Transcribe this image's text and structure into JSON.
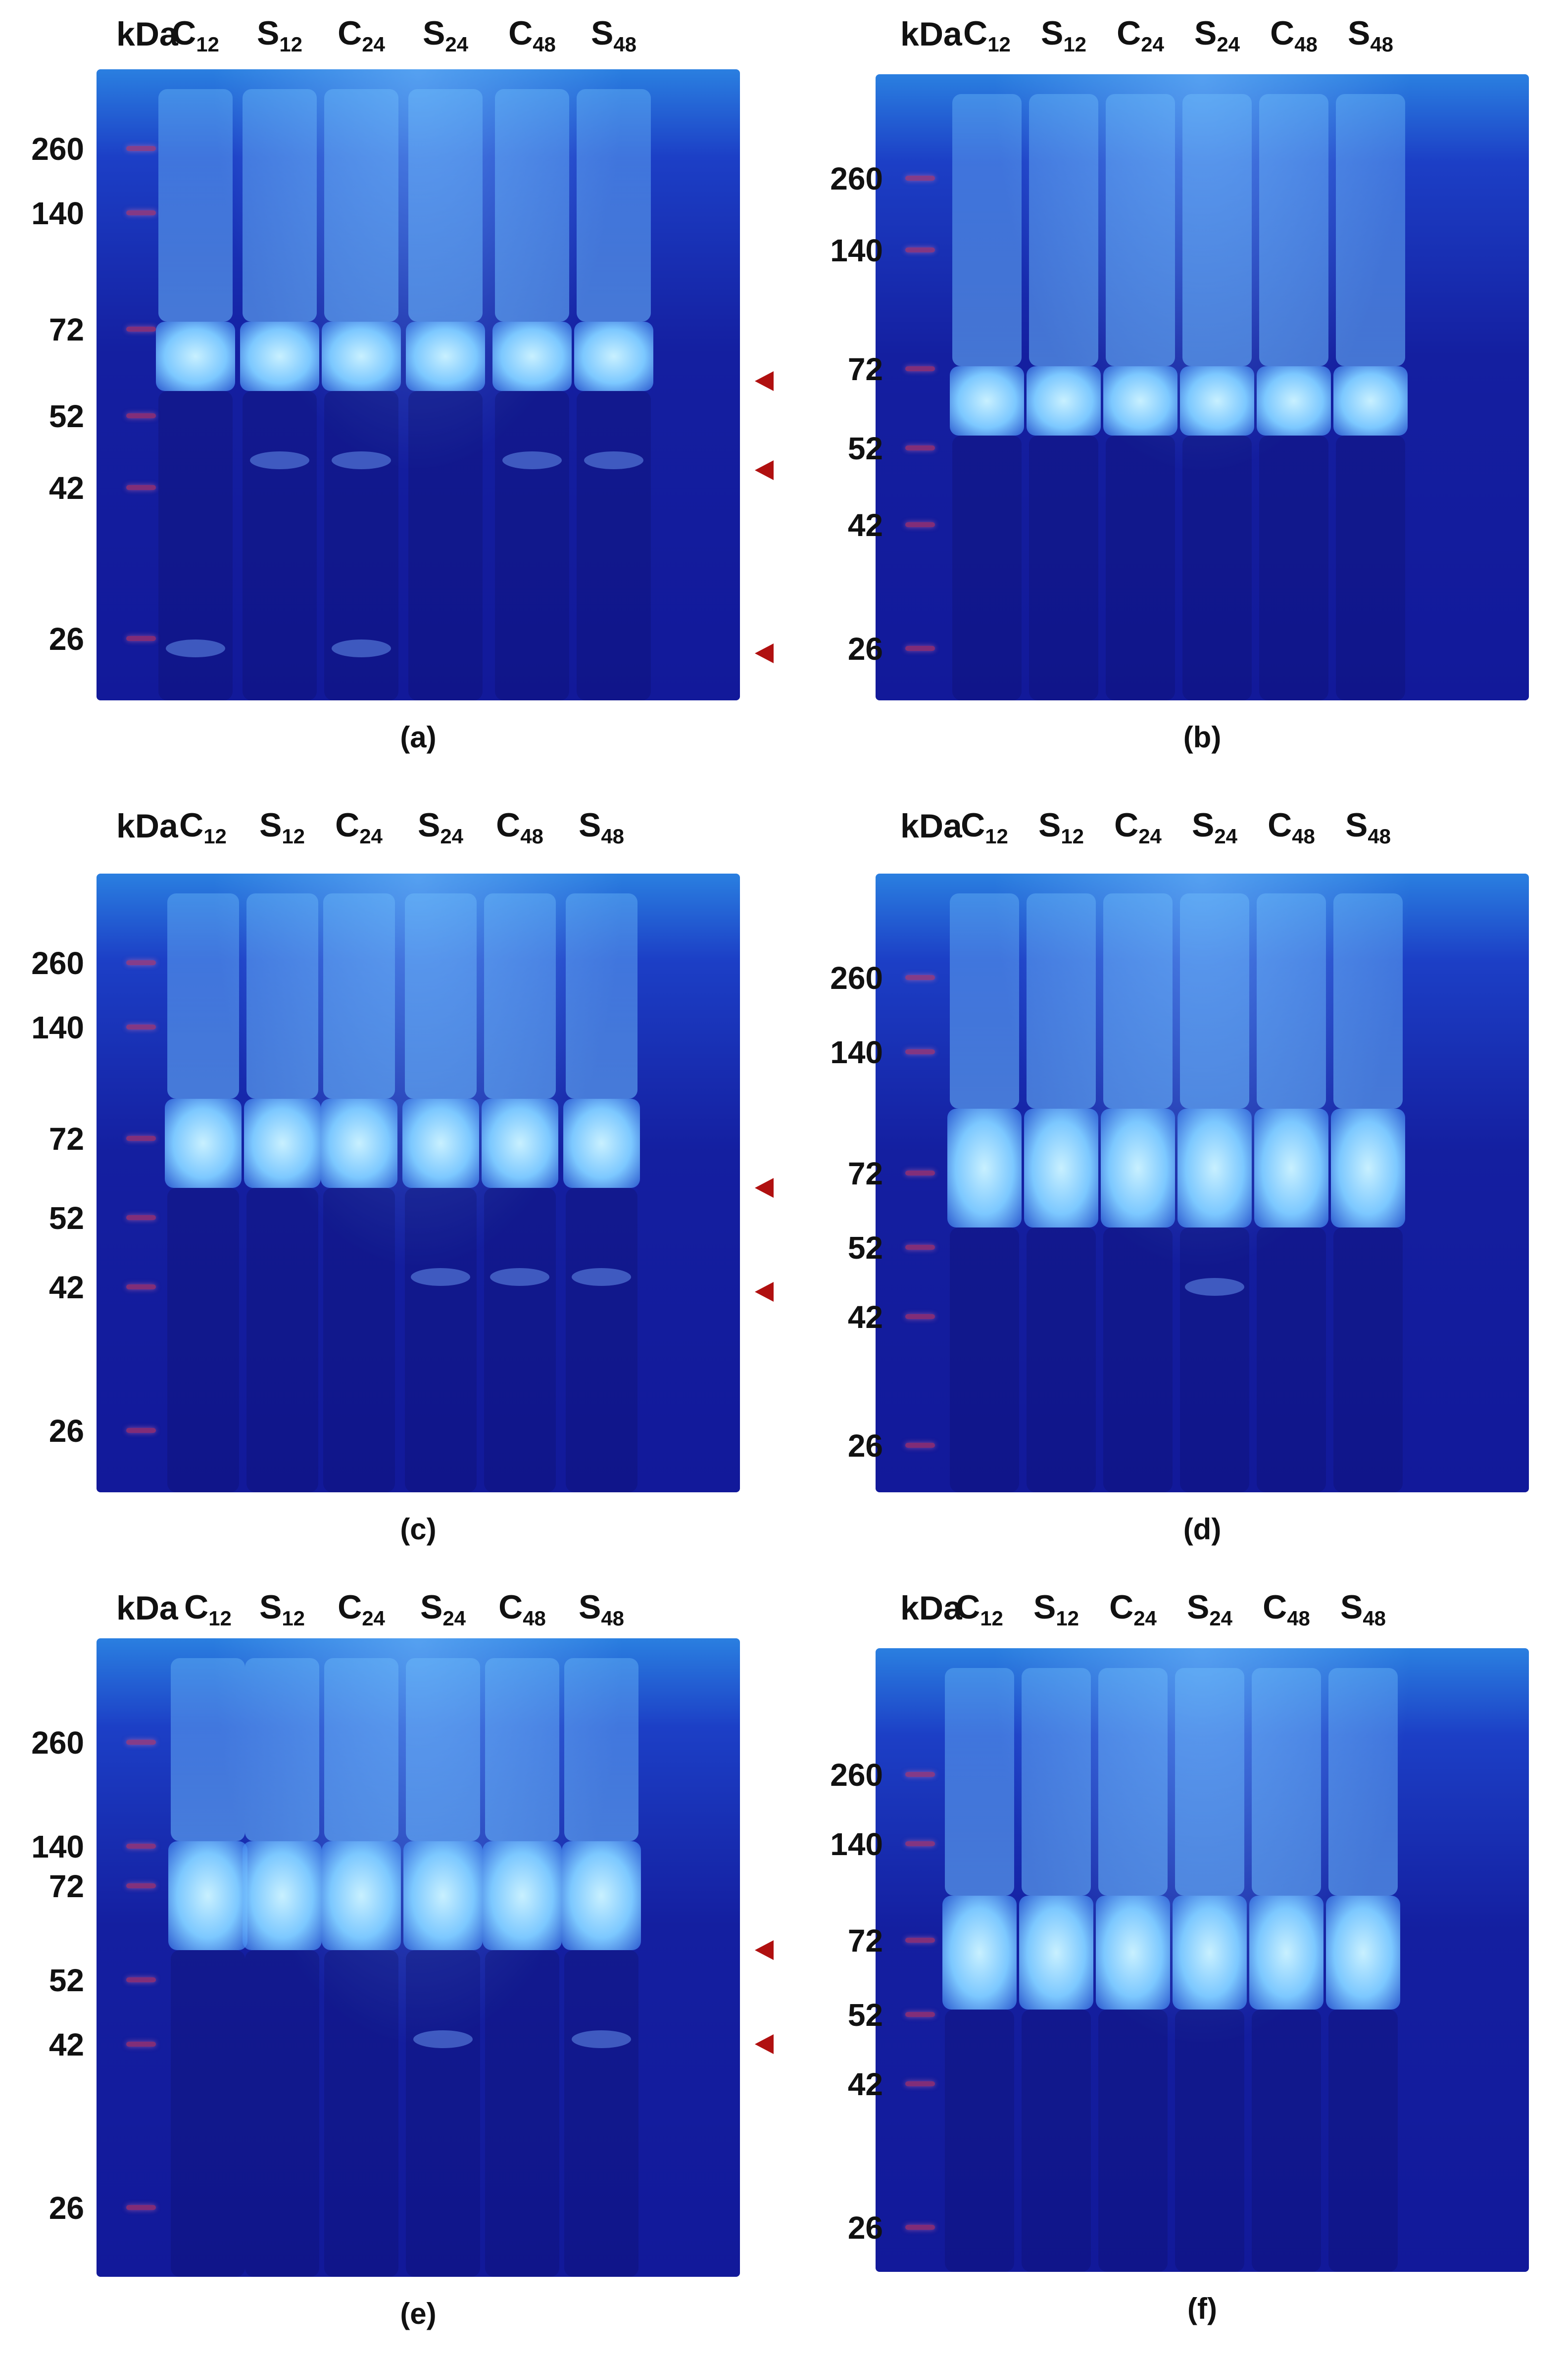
{
  "lane_labels": [
    {
      "letter": "C",
      "sub": "12"
    },
    {
      "letter": "S",
      "sub": "12"
    },
    {
      "letter": "C",
      "sub": "24"
    },
    {
      "letter": "S",
      "sub": "24"
    },
    {
      "letter": "C",
      "sub": "48"
    },
    {
      "letter": "S",
      "sub": "48"
    }
  ],
  "kda_label": "kDa",
  "panels": [
    {
      "id": "a",
      "caption": "(a)",
      "markers": [
        "260",
        "140",
        "72",
        "52",
        "42",
        "26"
      ],
      "arrows": 3
    },
    {
      "id": "b",
      "caption": "(b)",
      "markers": [
        "260",
        "140",
        "72",
        "52",
        "42",
        "26"
      ],
      "arrows": 0
    },
    {
      "id": "c",
      "caption": "(c)",
      "markers": [
        "260",
        "140",
        "72",
        "52",
        "42",
        "26"
      ],
      "arrows": 2
    },
    {
      "id": "d",
      "caption": "(d)",
      "markers": [
        "260",
        "140",
        "72",
        "52",
        "42",
        "26"
      ],
      "arrows": 0
    },
    {
      "id": "e",
      "caption": "(e)",
      "markers": [
        "260",
        "140",
        "72",
        "52",
        "42",
        "26"
      ],
      "arrows": 2
    },
    {
      "id": "f",
      "caption": "(f)",
      "markers": [
        "260",
        "140",
        "72",
        "52",
        "42",
        "26"
      ],
      "arrows": 0
    }
  ],
  "colors": {
    "gel_dark": "#12199a",
    "gel_light": "#2a7fe0",
    "band": "#8fd8ff",
    "arrow": "#b01010"
  }
}
